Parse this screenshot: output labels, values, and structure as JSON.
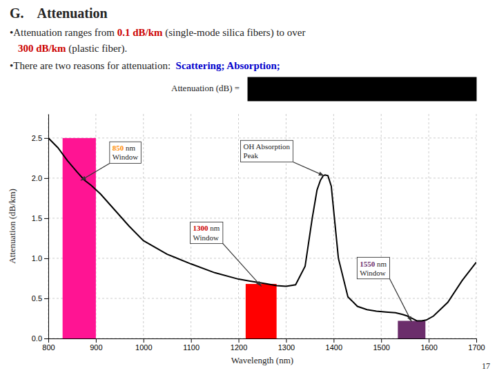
{
  "chart_data": {
    "type": "line",
    "title": "G.    Attenuation",
    "notes": [
      [
        {
          "text": "•Attenuation ranges from "
        },
        {
          "text": "0.1 dB/km",
          "color": "#CC0000"
        },
        {
          "text": " (single-mode silica fibers) to over"
        }
      ],
      [
        {
          "text": "300 dB/km",
          "color": "#CC0000"
        },
        {
          "text": " (plastic fiber)."
        }
      ],
      [
        {
          "text": "•There are two reasons for attenuation:  "
        },
        {
          "text": "Scattering; Absorption;",
          "color": "#0000CC"
        }
      ]
    ],
    "formula": {
      "label": "Attenuation (dB) =",
      "color": "#000000"
    },
    "page_number": "17",
    "xlabel": "Wavelength (nm)",
    "ylabel": "Attenuation (dB/km)",
    "x": [
      800,
      820,
      840,
      860,
      875,
      890,
      910,
      940,
      970,
      1000,
      1050,
      1100,
      1150,
      1200,
      1220,
      1240,
      1260,
      1280,
      1300,
      1320,
      1340,
      1355,
      1365,
      1372,
      1378,
      1382,
      1388,
      1395,
      1410,
      1430,
      1450,
      1470,
      1490,
      1510,
      1530,
      1545,
      1555,
      1565,
      1575,
      1585,
      1595,
      1610,
      1640,
      1670,
      1700
    ],
    "values": [
      2.5,
      2.38,
      2.22,
      2.08,
      1.98,
      1.91,
      1.8,
      1.6,
      1.4,
      1.22,
      1.05,
      0.93,
      0.82,
      0.74,
      0.72,
      0.7,
      0.68,
      0.66,
      0.65,
      0.67,
      0.9,
      1.5,
      1.85,
      1.97,
      2.03,
      2.04,
      2.03,
      1.9,
      1.0,
      0.52,
      0.4,
      0.36,
      0.34,
      0.33,
      0.32,
      0.3,
      0.28,
      0.25,
      0.22,
      0.22,
      0.23,
      0.28,
      0.45,
      0.72,
      0.95
    ],
    "color": "#000000",
    "xlim": [
      800,
      1700
    ],
    "ylim": [
      0.0,
      2.8
    ],
    "xticks": [
      800,
      900,
      1000,
      1100,
      1200,
      1300,
      1400,
      1500,
      1600,
      1700
    ],
    "yticks": [
      {
        "value": 0.0,
        "label": "0.0"
      },
      0.5,
      {
        "value": 1.0,
        "label": "1.0"
      },
      1.5,
      {
        "value": 2.0,
        "label": "2.0"
      },
      2.5
    ],
    "grid": true,
    "shaded_regions": [
      {
        "x": [
          830,
          900
        ],
        "y": 2.5,
        "color": "#FF1493"
      },
      {
        "x": [
          1215,
          1280
        ],
        "y": 0.68,
        "color": "#FF0000"
      },
      {
        "x": [
          1535,
          1593
        ],
        "y": 0.22,
        "color": "#6B2D6B"
      }
    ],
    "annotations": [
      {
        "text": "850 nm\nWindow",
        "emphasis": "850",
        "color": "#FF8C00",
        "x": 868,
        "y": 1.97
      },
      {
        "text": "1300 nm\nWindow",
        "emphasis": "1300",
        "color": "#CC0000",
        "x": 1248,
        "y": 0.65
      },
      {
        "text": "1550 nm\nWindow",
        "emphasis": "1550",
        "color": "#6B2D6B",
        "x": 1564,
        "y": 0.21
      },
      {
        "text": "OH Absorption\nPeak",
        "x": 1380,
        "y": 2.03
      }
    ]
  }
}
